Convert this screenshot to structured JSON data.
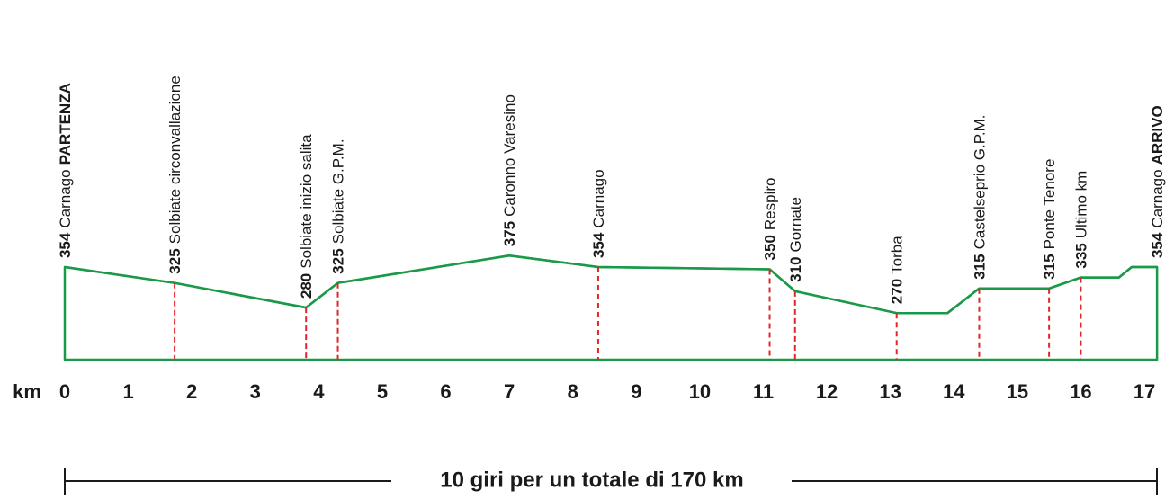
{
  "chart_data": {
    "type": "area",
    "x_label": "km",
    "x": [
      0,
      1.73,
      3.8,
      4.3,
      7,
      8.4,
      11.1,
      11.5,
      13.1,
      13.9,
      14.4,
      15.5,
      16,
      16.6,
      16.8,
      17.2
    ],
    "values": [
      354,
      325,
      280,
      325,
      375,
      354,
      350,
      310,
      270,
      270,
      315,
      315,
      335,
      335,
      354,
      354
    ],
    "places": [
      "Carnago",
      "Solbiate circonvallazione",
      "Solbiate inizio salita",
      "Solbiate G.P.M.",
      "Caronno Varesino",
      "Carnago",
      "Respiro",
      "Gornate",
      "Torba",
      null,
      "Castelseprio G.P.M.",
      "Ponte Tenore",
      "Ultimo km",
      null,
      null,
      "Carnago"
    ],
    "stages": [
      "PARTENZA",
      null,
      null,
      null,
      null,
      null,
      null,
      null,
      null,
      null,
      null,
      null,
      null,
      null,
      null,
      "ARRIVO"
    ],
    "dashed": [
      false,
      true,
      true,
      true,
      false,
      true,
      true,
      true,
      true,
      false,
      true,
      true,
      true,
      false,
      false,
      false
    ],
    "color": "#1a9a48",
    "marker_color": "#e0262b",
    "xlim": [
      0,
      17
    ],
    "xticks": [
      0,
      1,
      2,
      3,
      4,
      5,
      6,
      7,
      8,
      9,
      10,
      11,
      12,
      13,
      14,
      15,
      16,
      17
    ],
    "ylim": [
      185,
      400
    ],
    "footer": "10 giri per un totale di 170 km"
  }
}
